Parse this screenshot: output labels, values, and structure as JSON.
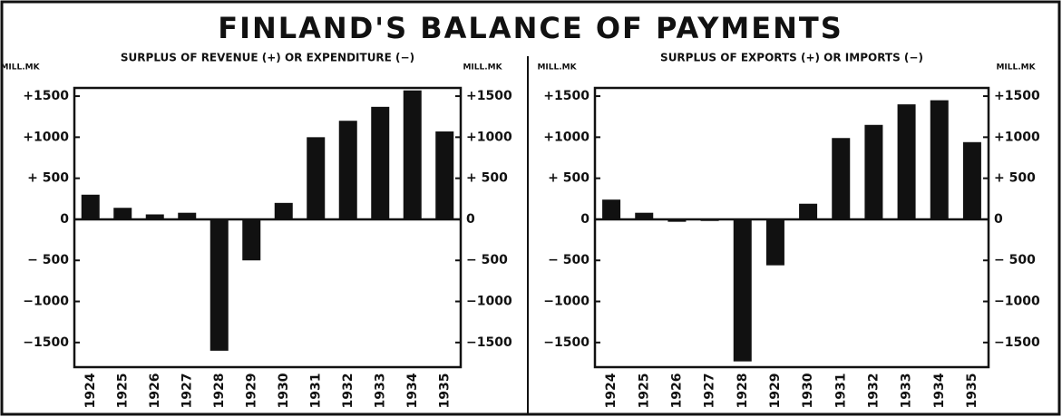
{
  "title": "FINLAND'S BALANCE OF PAYMENTS",
  "chart_data": [
    {
      "type": "bar",
      "subtitle": "SURPLUS OF REVENUE (+) OR EXPENDITURE (−)",
      "ylabel": "MILL.MK",
      "categories": [
        "1924",
        "1925",
        "1926",
        "1927",
        "1928",
        "1929",
        "1930",
        "1931",
        "1932",
        "1933",
        "1934",
        "1935"
      ],
      "values": [
        300,
        140,
        60,
        80,
        -1600,
        -500,
        200,
        1000,
        1200,
        1370,
        1570,
        1070
      ],
      "color": "#111111",
      "ylim": [
        -1800,
        1600
      ],
      "yticks": [
        {
          "value": 1500,
          "label": "+1500"
        },
        {
          "value": 1000,
          "label": "+1000"
        },
        {
          "value": 500,
          "label": "+ 500"
        },
        0,
        {
          "value": -500,
          "label": "− 500"
        },
        {
          "value": -1000,
          "label": "−1000"
        },
        {
          "value": -1500,
          "label": "−1500"
        }
      ]
    },
    {
      "type": "bar",
      "subtitle": "SURPLUS OF EXPORTS (+) OR IMPORTS (−)",
      "ylabel": "MILL.MK",
      "categories": [
        "1924",
        "1925",
        "1926",
        "1927",
        "1928",
        "1929",
        "1930",
        "1931",
        "1932",
        "1933",
        "1934",
        "1935"
      ],
      "values": [
        240,
        80,
        -30,
        -20,
        -1730,
        -560,
        190,
        990,
        1150,
        1400,
        1450,
        940
      ],
      "color": "#111111",
      "ylim": [
        -1800,
        1600
      ],
      "yticks": [
        {
          "value": 1500,
          "label": "+1500"
        },
        {
          "value": 1000,
          "label": "+1000"
        },
        {
          "value": 500,
          "label": "+ 500"
        },
        0,
        {
          "value": -500,
          "label": "− 500"
        },
        {
          "value": -1000,
          "label": "−1000"
        },
        {
          "value": -1500,
          "label": "−1500"
        }
      ]
    }
  ]
}
